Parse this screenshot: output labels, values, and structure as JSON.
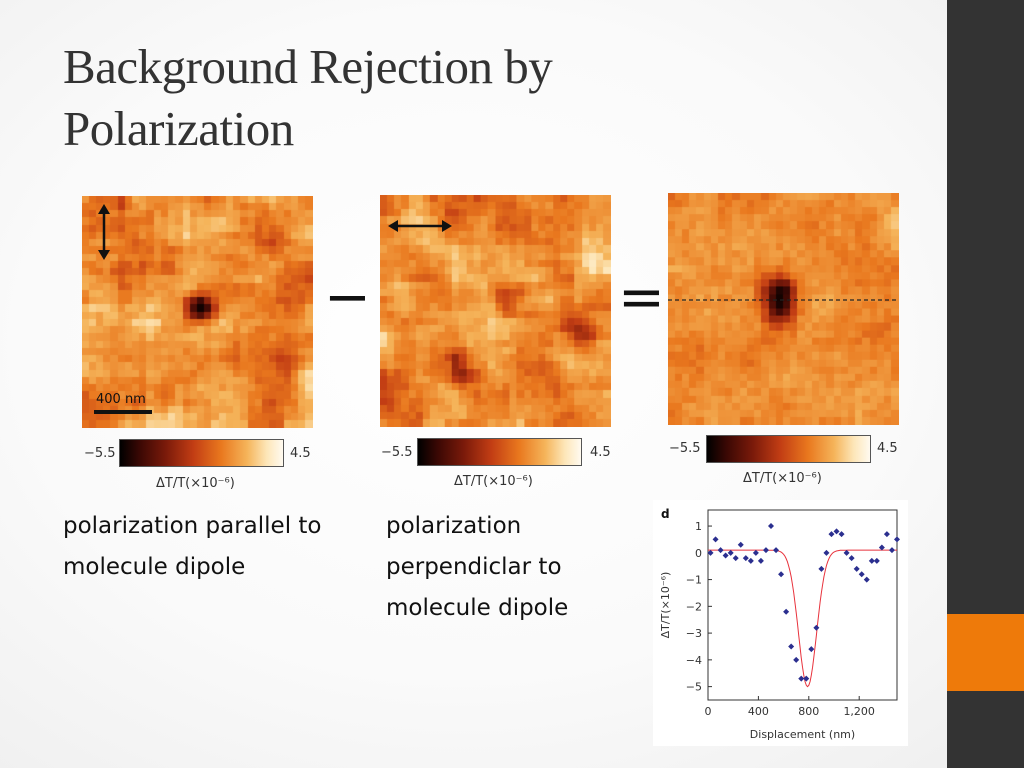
{
  "slide": {
    "title": "Background Rejection by Polarization",
    "minus_operator": "−",
    "equals_operator": "=",
    "colors": {
      "sidebar": "#333333",
      "accent": "#ee7a0a"
    }
  },
  "panels": [
    {
      "polarization_arrow": "vertical",
      "scale_bar": "400 nm"
    },
    {
      "polarization_arrow": "horizontal"
    },
    {
      "polarization_arrow": "none",
      "dashed_line": true
    }
  ],
  "colorbars": [
    {
      "min": "−5.5",
      "max": "4.5",
      "title": "ΔT/T(×10⁻⁶)"
    },
    {
      "min": "−5.5",
      "max": "4.5",
      "title": "ΔT/T(×10⁻⁶)"
    },
    {
      "min": "−5.5",
      "max": "4.5",
      "title": "ΔT/T(×10⁻⁶)"
    }
  ],
  "captions": {
    "parallel": "polarization parallel to molecule dipole",
    "perpendicular": "polarization perpendiclar to molecule dipole"
  },
  "chart_data": {
    "type": "scatter",
    "panel_label": "d",
    "xlabel": "Displacement (nm)",
    "ylabel": "ΔT/T(×10⁻⁶)",
    "xlim": [
      0,
      1500
    ],
    "ylim": [
      -5.5,
      1.6
    ],
    "xticks": [
      0,
      400,
      800,
      1200
    ],
    "xtick_labels": [
      "0",
      "400",
      "800",
      "1,200"
    ],
    "yticks": [
      1,
      0,
      -1,
      -2,
      -3,
      -4,
      -5
    ],
    "ytick_labels": [
      "1",
      "0",
      "−1",
      "−2",
      "−3",
      "−4",
      "−5"
    ],
    "points": {
      "x": [
        20,
        60,
        100,
        140,
        180,
        220,
        260,
        300,
        340,
        380,
        420,
        460,
        500,
        540,
        580,
        620,
        660,
        700,
        740,
        780,
        820,
        860,
        900,
        940,
        980,
        1020,
        1060,
        1100,
        1140,
        1180,
        1220,
        1260,
        1300,
        1340,
        1380,
        1420,
        1460,
        1500
      ],
      "y": [
        0.0,
        0.5,
        0.1,
        -0.1,
        0.0,
        -0.2,
        0.3,
        -0.2,
        -0.3,
        0.0,
        -0.3,
        0.1,
        1.0,
        0.1,
        -0.8,
        -2.2,
        -3.5,
        -4.0,
        -4.7,
        -4.7,
        -3.6,
        -2.8,
        -0.6,
        0.0,
        0.7,
        0.8,
        0.7,
        0.0,
        -0.2,
        -0.6,
        -0.8,
        -1.0,
        -0.3,
        -0.3,
        0.2,
        0.7,
        0.1,
        0.5
      ]
    },
    "fit": {
      "color": "#e8323c",
      "baseline": 0.1,
      "depth": -5.0,
      "center": 790,
      "sigma": 72
    },
    "marker_color": "#2b2f8f"
  }
}
